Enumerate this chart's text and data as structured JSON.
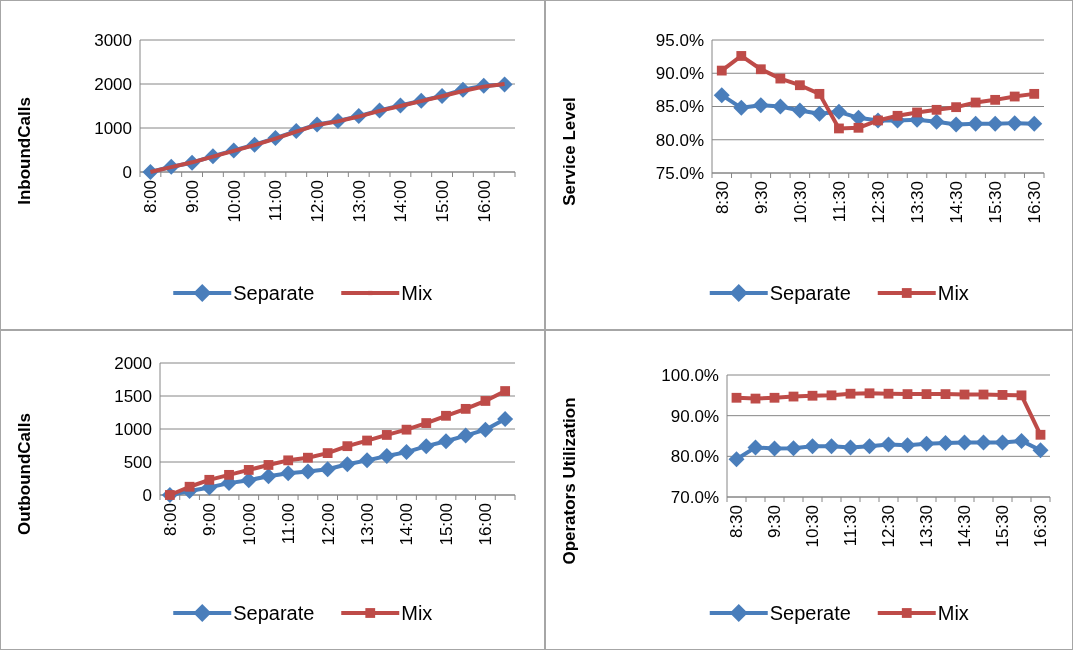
{
  "chart_data": [
    {
      "type": "line",
      "ylabel": "InboundCalls",
      "categories": [
        "8:00",
        null,
        "9:00",
        null,
        "10:00",
        null,
        "11:00",
        null,
        "12:00",
        null,
        "13:00",
        null,
        "14:00",
        null,
        "15:00",
        null,
        "16:00",
        null
      ],
      "ylim": [
        0,
        3000
      ],
      "yticks": [
        0,
        1000,
        2000,
        3000
      ],
      "grid": "y",
      "legend": "bottom",
      "series": [
        {
          "name": "Separate",
          "color": "#4a7ebb",
          "marker": "diamond",
          "values": [
            0,
            120,
            210,
            360,
            490,
            620,
            770,
            930,
            1080,
            1160,
            1270,
            1400,
            1510,
            1620,
            1730,
            1870,
            1960,
            1990
          ]
        },
        {
          "name": "Mix",
          "color": "#be4b48",
          "marker": "none",
          "values": [
            0,
            110,
            220,
            350,
            480,
            610,
            760,
            920,
            1070,
            1150,
            1260,
            1390,
            1500,
            1610,
            1720,
            1840,
            1940,
            2000
          ]
        }
      ]
    },
    {
      "type": "line",
      "ylabel": "Service Level",
      "categories": [
        "8:30",
        null,
        "9:30",
        null,
        "10:30",
        null,
        "11:30",
        null,
        "12:30",
        null,
        "13:30",
        null,
        "14:30",
        null,
        "15:30",
        null,
        "16:30"
      ],
      "ylim": [
        75,
        95
      ],
      "yticks": [
        {
          "value": 75,
          "label": "75.0%"
        },
        {
          "value": 80,
          "label": "80.0%"
        },
        {
          "value": 85,
          "label": "85.0%"
        },
        {
          "value": 90,
          "label": "90.0%"
        },
        {
          "value": 95,
          "label": "95.0%"
        }
      ],
      "grid": "y",
      "legend": "bottom",
      "series": [
        {
          "name": "Separate",
          "color": "#4a7ebb",
          "marker": "diamond",
          "values": [
            86.7,
            84.8,
            85.2,
            85.0,
            84.4,
            83.9,
            84.2,
            83.3,
            82.9,
            82.9,
            83.0,
            82.7,
            82.3,
            82.4,
            82.4,
            82.5,
            82.4
          ]
        },
        {
          "name": "Mix",
          "color": "#be4b48",
          "marker": "square",
          "values": [
            90.4,
            92.6,
            90.6,
            89.2,
            88.2,
            86.9,
            81.7,
            81.8,
            82.9,
            83.6,
            84.1,
            84.5,
            84.9,
            85.6,
            86.0,
            86.5,
            86.9
          ]
        }
      ]
    },
    {
      "type": "line",
      "ylabel": "OutboundCalls",
      "categories": [
        "8:00",
        null,
        "9:00",
        null,
        "10:00",
        null,
        "11:00",
        null,
        "12:00",
        null,
        "13:00",
        null,
        "14:00",
        null,
        "15:00",
        null,
        "16:00",
        null
      ],
      "ylim": [
        0,
        2000
      ],
      "yticks": [
        0,
        500,
        1000,
        1500,
        2000
      ],
      "grid": "y",
      "legend": "bottom",
      "series": [
        {
          "name": "Separate",
          "color": "#4a7ebb",
          "marker": "diamond",
          "values": [
            0,
            60,
            115,
            180,
            225,
            285,
            330,
            355,
            390,
            465,
            525,
            590,
            650,
            740,
            815,
            900,
            990,
            1150
          ]
        },
        {
          "name": "Mix",
          "color": "#be4b48",
          "marker": "square",
          "values": [
            0,
            125,
            230,
            305,
            380,
            455,
            525,
            565,
            635,
            740,
            825,
            910,
            990,
            1090,
            1200,
            1305,
            1425,
            1575
          ]
        }
      ]
    },
    {
      "type": "line",
      "ylabel": "Operators Utilization",
      "categories": [
        "8:30",
        null,
        "9:30",
        null,
        "10:30",
        null,
        "11:30",
        null,
        "12:30",
        null,
        "13:30",
        null,
        "14:30",
        null,
        "15:30",
        null,
        "16:30"
      ],
      "ylim": [
        70,
        100
      ],
      "yticks": [
        {
          "value": 70,
          "label": "70.0%"
        },
        {
          "value": 80,
          "label": "80.0%"
        },
        {
          "value": 90,
          "label": "90.0%"
        },
        {
          "value": 100,
          "label": "100.0%"
        }
      ],
      "grid": "y",
      "legend": "bottom",
      "series": [
        {
          "name": "Seperate",
          "color": "#4a7ebb",
          "marker": "diamond",
          "values": [
            79.3,
            82.2,
            81.9,
            82.0,
            82.5,
            82.5,
            82.2,
            82.5,
            82.9,
            82.7,
            83.1,
            83.3,
            83.4,
            83.4,
            83.4,
            83.8,
            81.5
          ]
        },
        {
          "name": "Mix",
          "color": "#be4b48",
          "marker": "square",
          "values": [
            94.4,
            94.2,
            94.4,
            94.7,
            94.9,
            95.0,
            95.4,
            95.5,
            95.4,
            95.3,
            95.3,
            95.3,
            95.2,
            95.2,
            95.1,
            95.0,
            85.3
          ]
        }
      ]
    }
  ]
}
